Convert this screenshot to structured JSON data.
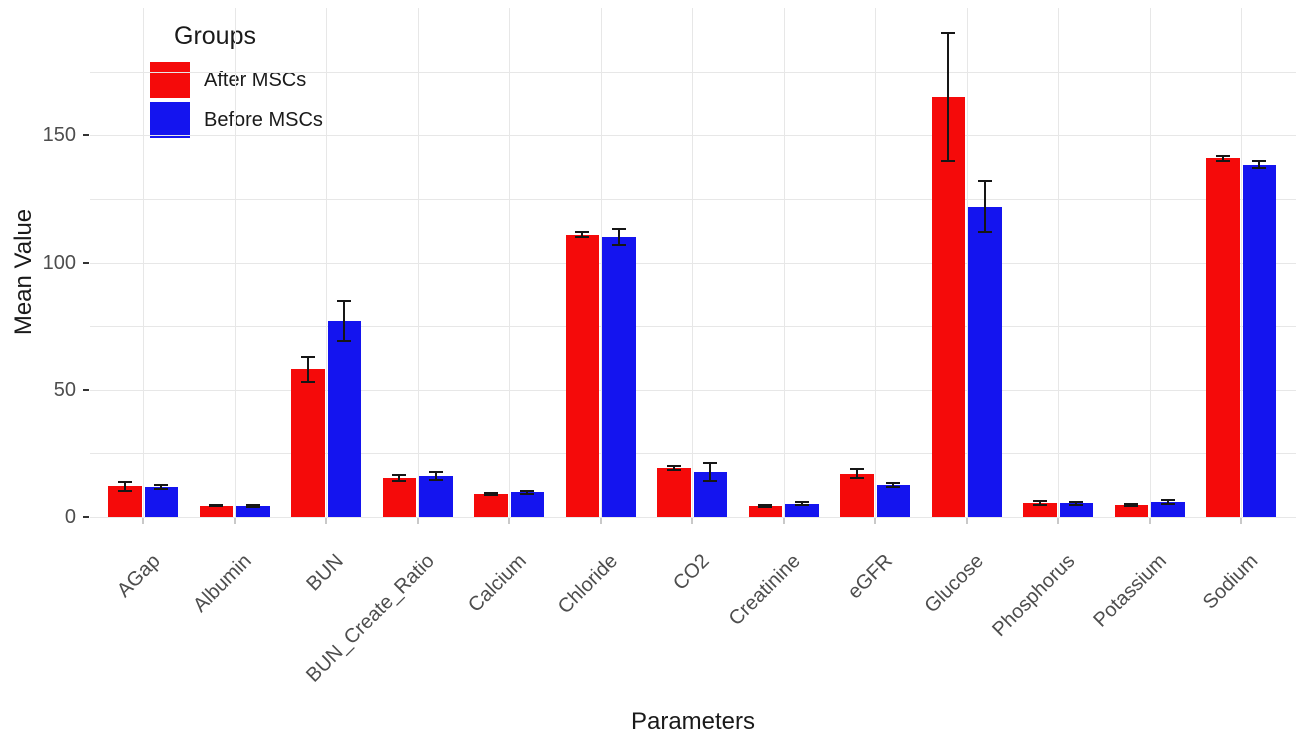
{
  "chart_data": {
    "type": "bar",
    "title": "",
    "xlabel": "Parameters",
    "ylabel": "Mean Value",
    "ylim": [
      0,
      200
    ],
    "yticks": [
      0,
      50,
      100,
      150
    ],
    "grid": true,
    "grid_minor_step": 25,
    "legend_title": "Groups",
    "legend_position": "top-left-inside",
    "error_bars": true,
    "categories": [
      "AGap",
      "Albumin",
      "BUN",
      "BUN_Create_Ratio",
      "Calcium",
      "Chloride",
      "CO2",
      "Creatinine",
      "eGFR",
      "Glucose",
      "Phosphorus",
      "Potassium",
      "Sodium"
    ],
    "series": [
      {
        "name": "After MSCs",
        "color": "#f50a0a",
        "values": [
          12,
          4.5,
          58,
          15.2,
          8.9,
          111,
          19.2,
          4.4,
          17,
          165,
          5.4,
          4.8,
          141
        ],
        "errors": [
          1.6,
          0.3,
          5,
          1.2,
          0.4,
          0.8,
          0.8,
          0.3,
          1.8,
          25,
          0.7,
          0.3,
          1
        ]
      },
      {
        "name": "Before MSCs",
        "color": "#1414ef",
        "values": [
          11.8,
          4.4,
          77,
          16.2,
          9.8,
          110,
          17.8,
          5.3,
          12.5,
          122,
          5.4,
          5.9,
          138.5
        ],
        "errors": [
          0.9,
          0.4,
          8,
          1.6,
          0.6,
          3,
          3.5,
          0.4,
          0.8,
          10,
          0.6,
          0.6,
          1.5
        ]
      }
    ]
  }
}
